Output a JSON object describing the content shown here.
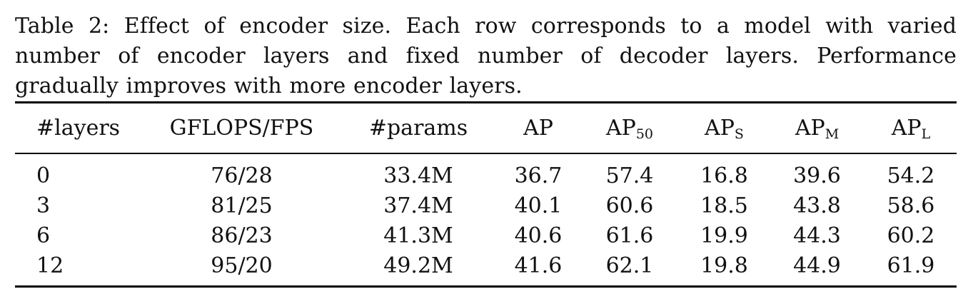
{
  "caption": "Table 2: Effect of encoder size. Each row corresponds to a model with varied number of encoder layers and fixed number of decoder layers. Performance gradually improves with more encoder layers.",
  "table": {
    "headers": [
      {
        "main": "#layers",
        "sub": ""
      },
      {
        "main": "GFLOPS/FPS",
        "sub": ""
      },
      {
        "main": "#params",
        "sub": ""
      },
      {
        "main": "AP",
        "sub": ""
      },
      {
        "main": "AP",
        "sub": "50"
      },
      {
        "main": "AP",
        "sub": "S"
      },
      {
        "main": "AP",
        "sub": "M"
      },
      {
        "main": "AP",
        "sub": "L"
      }
    ],
    "rows": [
      [
        "0",
        "76/28",
        "33.4M",
        "36.7",
        "57.4",
        "16.8",
        "39.6",
        "54.2"
      ],
      [
        "3",
        "81/25",
        "37.4M",
        "40.1",
        "60.6",
        "18.5",
        "43.8",
        "58.6"
      ],
      [
        "6",
        "86/23",
        "41.3M",
        "40.6",
        "61.6",
        "19.9",
        "44.3",
        "60.2"
      ],
      [
        "12",
        "95/20",
        "49.2M",
        "41.6",
        "62.1",
        "19.8",
        "44.9",
        "61.9"
      ]
    ]
  }
}
